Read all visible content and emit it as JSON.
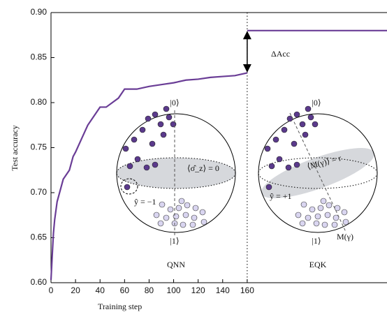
{
  "chart_data": {
    "type": "line",
    "x_label": "Training step",
    "y_label": "Test accuracy",
    "xlim": [
      0,
      274
    ],
    "ylim": [
      0.6,
      0.9
    ],
    "xticks": [
      0,
      20,
      40,
      60,
      80,
      100,
      120,
      140,
      160
    ],
    "yticks": [
      {
        "value": 0.6,
        "label": "0.60"
      },
      {
        "value": 0.65,
        "label": "0.65"
      },
      {
        "value": 0.7,
        "label": "0.70"
      },
      {
        "value": 0.75,
        "label": "0.75"
      },
      {
        "value": 0.8,
        "label": "0.80"
      },
      {
        "value": 0.85,
        "label": "0.85"
      },
      {
        "value": 0.9,
        "label": "0.90"
      }
    ],
    "series": [
      {
        "name": "QNN",
        "color": "#6a3d96",
        "x": [
          0,
          1,
          2,
          3,
          5,
          8,
          10,
          15,
          18,
          20,
          25,
          30,
          35,
          40,
          45,
          50,
          55,
          60,
          65,
          70,
          80,
          90,
          100,
          110,
          120,
          130,
          140,
          150,
          160
        ],
        "values": [
          0.603,
          0.63,
          0.655,
          0.67,
          0.69,
          0.705,
          0.715,
          0.725,
          0.74,
          0.745,
          0.76,
          0.775,
          0.785,
          0.795,
          0.795,
          0.8,
          0.805,
          0.815,
          0.815,
          0.815,
          0.818,
          0.82,
          0.822,
          0.825,
          0.826,
          0.828,
          0.829,
          0.83,
          0.833
        ]
      },
      {
        "name": "EQK",
        "color": "#6a3d96",
        "x": [
          160,
          274
        ],
        "values": [
          0.88,
          0.88
        ]
      }
    ],
    "annotations": {
      "delta": "ΔAcc",
      "ket0a": "|0⟩",
      "ket1a": "|1⟩",
      "obs_a": "⟨σ̂_z⟩ = 0",
      "label_a": "ŷ = −1",
      "ket0b": "|0⟩",
      "ket1b": "|1⟩",
      "obs_b": "⟨M(γ)⟩ = r",
      "label_b": "ŷ = +1",
      "meas_b": "M(γ)"
    }
  }
}
